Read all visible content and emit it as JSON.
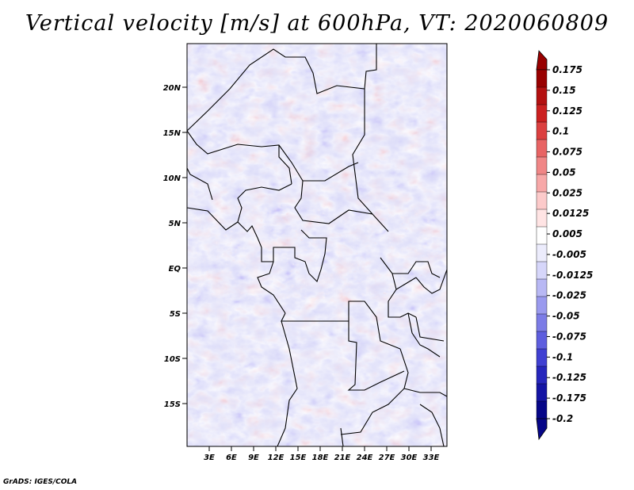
{
  "title": "Vertical velocity [m/s] at 600hPa, VT: 2020060809",
  "credit": "GrADS: IGES/COLA",
  "map": {
    "lat_labels": [
      "20N",
      "15N",
      "10N",
      "5N",
      "EQ",
      "5S",
      "10S",
      "15S"
    ],
    "lon_labels": [
      "3E",
      "6E",
      "9E",
      "12E",
      "15E",
      "18E",
      "21E",
      "24E",
      "27E",
      "30E",
      "33E"
    ],
    "field": "vertical-velocity",
    "palette": [
      "#4a2fc8",
      "#7a6af0",
      "#c8c8fa",
      "#ffffff",
      "#fad2d2",
      "#f07a7a",
      "#c82020"
    ]
  },
  "colorbar": {
    "upper_colors": [
      "#ffffff",
      "#ffe4e4",
      "#fccaca",
      "#f7a8a8",
      "#f08686",
      "#e86464",
      "#db4040",
      "#cb2020",
      "#b31010",
      "#980000"
    ],
    "lower_colors": [
      "#ececfc",
      "#d6d6fa",
      "#b8b8f4",
      "#9a9aee",
      "#7c7ce6",
      "#5e5ede",
      "#4040d2",
      "#2626bc",
      "#1414a4",
      "#060688"
    ],
    "labels": [
      "0.175",
      "0.15",
      "0.125",
      "0.1",
      "0.075",
      "0.05",
      "0.025",
      "0.0125",
      "0.005",
      "-0.005",
      "-0.0125",
      "-0.025",
      "-0.05",
      "-0.075",
      "-0.1",
      "-0.125",
      "-0.175",
      "-0.2"
    ],
    "top_cap_color": "#980000",
    "bottom_cap_color": "#060688"
  }
}
